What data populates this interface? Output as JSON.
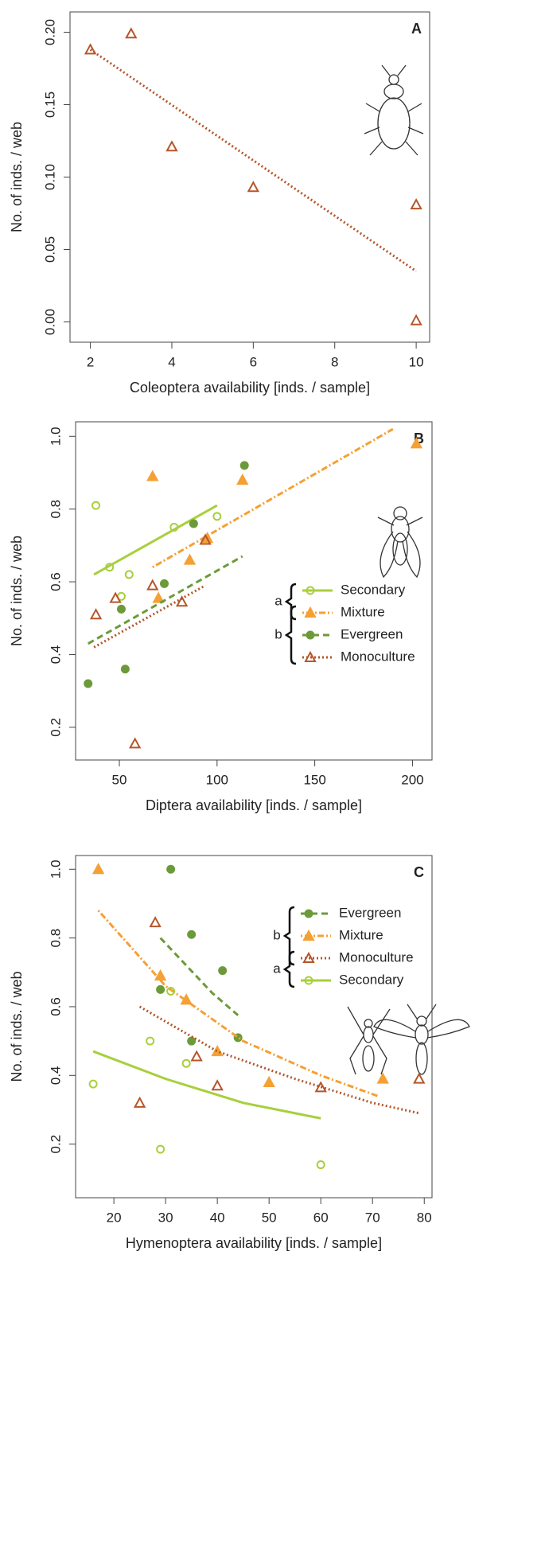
{
  "chart_data": [
    {
      "type": "scatter",
      "panel_label": "A",
      "xlabel": "Coleoptera availability [inds. / sample]",
      "ylabel": "No. of inds. / web",
      "xlim": [
        1.5,
        10.33
      ],
      "ylim": [
        -0.014,
        0.214
      ],
      "xticks": [
        2,
        4,
        6,
        8,
        10
      ],
      "yticks": [
        {
          "value": 0,
          "label": "0.00"
        },
        {
          "value": 0.05,
          "label": "0.05"
        },
        {
          "value": 0.1,
          "label": "0.10"
        },
        {
          "value": 0.15,
          "label": "0.15"
        },
        {
          "value": 0.2,
          "label": "0.20"
        }
      ],
      "series": [
        {
          "color": "#b5562a",
          "marker": "open-triangle",
          "line": "dotted",
          "x": [
            2,
            3,
            4,
            6,
            10,
            10
          ],
          "values": [
            0.188,
            0.199,
            0.121,
            0.093,
            0.081,
            0.001
          ],
          "fit_x": [
            2,
            10
          ],
          "fit_values": [
            0.188,
            0.035
          ]
        }
      ]
    },
    {
      "type": "scatter",
      "panel_label": "B",
      "xlabel": "Diptera availability [inds. / sample]",
      "ylabel": "No. of inds. / web",
      "xlim": [
        27.6,
        210
      ],
      "ylim": [
        0.11,
        1.04
      ],
      "xticks": [
        50,
        100,
        150,
        200
      ],
      "yticks": [
        {
          "value": 0.2,
          "label": "0.2"
        },
        {
          "value": 0.4,
          "label": "0.4"
        },
        {
          "value": 0.6,
          "label": "0.6"
        },
        {
          "value": 0.8,
          "label": "0.8"
        },
        {
          "value": 1.0,
          "label": "1.0"
        }
      ],
      "legend_brackets": [
        "a",
        "b"
      ],
      "series": [
        {
          "name": "Secondary",
          "color": "#a8cf3c",
          "marker": "open-circle",
          "line": "solid",
          "x": [
            38,
            45,
            51,
            55,
            78,
            100
          ],
          "values": [
            0.81,
            0.64,
            0.56,
            0.62,
            0.75,
            0.78
          ],
          "fit_x": [
            37,
            100
          ],
          "fit_values": [
            0.62,
            0.81
          ]
        },
        {
          "name": "Mixture",
          "color": "#f5a033",
          "marker": "filled-triangle",
          "line": "dotdash",
          "x": [
            67,
            70,
            86,
            95,
            113,
            202
          ],
          "values": [
            0.89,
            0.555,
            0.66,
            0.72,
            0.88,
            0.98
          ],
          "fit_x": [
            67,
            190
          ],
          "fit_values": [
            0.64,
            1.02
          ]
        },
        {
          "name": "Evergreen",
          "color": "#6c9a3a",
          "marker": "filled-circle",
          "line": "dashed",
          "x": [
            34,
            51,
            53,
            73,
            88,
            114
          ],
          "values": [
            0.32,
            0.525,
            0.36,
            0.595,
            0.76,
            0.92
          ],
          "fit_x": [
            34,
            113
          ],
          "fit_values": [
            0.43,
            0.67
          ]
        },
        {
          "name": "Monoculture",
          "color": "#b5562a",
          "marker": "open-triangle",
          "line": "dotted",
          "x": [
            38,
            48,
            58,
            67,
            82,
            94
          ],
          "values": [
            0.51,
            0.555,
            0.155,
            0.59,
            0.545,
            0.715
          ],
          "fit_x": [
            37,
            94
          ],
          "fit_values": [
            0.42,
            0.59
          ]
        }
      ]
    },
    {
      "type": "scatter",
      "panel_label": "C",
      "xlabel": "Hymenoptera availability [inds. / sample]",
      "ylabel": "No. of inds. / web",
      "xlim": [
        12.6,
        81.5
      ],
      "ylim": [
        0.044,
        1.04
      ],
      "xticks": [
        20,
        30,
        40,
        50,
        60,
        70,
        80
      ],
      "yticks": [
        {
          "value": 0.2,
          "label": "0.2"
        },
        {
          "value": 0.4,
          "label": "0.4"
        },
        {
          "value": 0.6,
          "label": "0.6"
        },
        {
          "value": 0.8,
          "label": "0.8"
        },
        {
          "value": 1.0,
          "label": "1.0"
        }
      ],
      "legend_brackets": [
        "b",
        "a"
      ],
      "series": [
        {
          "name": "Evergreen",
          "color": "#6c9a3a",
          "marker": "filled-circle",
          "line": "dashed",
          "x": [
            29,
            31,
            35,
            35,
            41,
            44
          ],
          "values": [
            0.65,
            1.0,
            0.81,
            0.5,
            0.705,
            0.51
          ],
          "fit_x": [
            29,
            34,
            39,
            44
          ],
          "fit_values": [
            0.8,
            0.72,
            0.64,
            0.575
          ]
        },
        {
          "name": "Mixture",
          "color": "#f5a033",
          "marker": "filled-triangle",
          "line": "dotdash",
          "x": [
            17,
            29,
            34,
            40,
            50,
            72
          ],
          "values": [
            1.0,
            0.69,
            0.62,
            0.47,
            0.38,
            0.39
          ],
          "fit_x": [
            17,
            30,
            45,
            60,
            71
          ],
          "fit_values": [
            0.88,
            0.66,
            0.5,
            0.4,
            0.34
          ]
        },
        {
          "name": "Monoculture",
          "color": "#b5562a",
          "marker": "open-triangle",
          "line": "dotted",
          "x": [
            25,
            28,
            36,
            40,
            60,
            79
          ],
          "values": [
            0.32,
            0.845,
            0.455,
            0.37,
            0.365,
            0.39
          ],
          "fit_x": [
            25,
            40,
            55,
            70,
            79
          ],
          "fit_values": [
            0.6,
            0.47,
            0.39,
            0.32,
            0.29
          ]
        },
        {
          "name": "Secondary",
          "color": "#a8cf3c",
          "marker": "open-circle",
          "line": "solid",
          "x": [
            16,
            27,
            29,
            31,
            34,
            60
          ],
          "values": [
            0.375,
            0.5,
            0.185,
            0.645,
            0.435,
            0.14
          ],
          "fit_x": [
            16,
            30,
            45,
            60
          ],
          "fit_values": [
            0.47,
            0.39,
            0.32,
            0.275
          ]
        }
      ]
    }
  ]
}
